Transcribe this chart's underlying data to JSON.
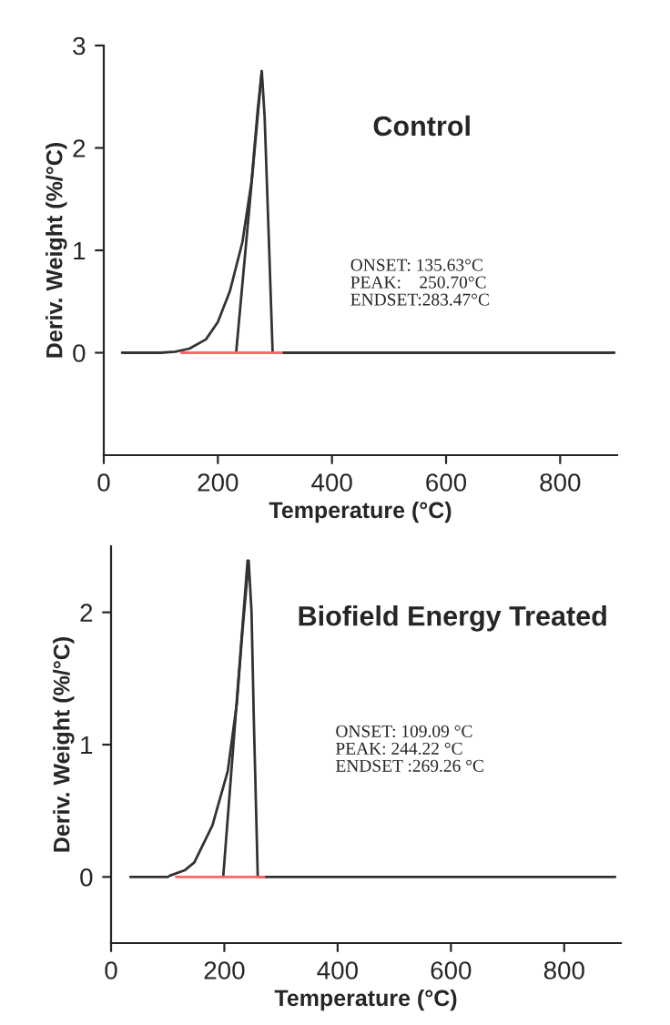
{
  "chart_data": [
    {
      "type": "line",
      "title": "Control",
      "xlabel": "Temperature (°C)",
      "ylabel": "Deriv. Weight (%/°C)",
      "annotations": [
        "ONSET: 135.63°C\nPEAK:    250.70°C\nENDSET:283.47°C"
      ],
      "series": [
        {
          "color": "#333333",
          "x": [
            32,
            100,
            125,
            150,
            179,
            200,
            221,
            243,
            259,
            270,
            277,
            282,
            290,
            296,
            350,
            500,
            700,
            895
          ],
          "values": [
            0,
            0,
            0.01,
            0.04,
            0.13,
            0.3,
            0.6,
            1.08,
            1.67,
            2.38,
            2.75,
            2.3,
            1.0,
            0,
            0,
            0,
            0,
            0
          ]
        },
        {
          "color": "#333333",
          "x": [
            232,
            277
          ],
          "values": [
            0,
            2.75
          ]
        },
        {
          "color": "#ff6666",
          "x": [
            136,
            312
          ],
          "values": [
            0,
            0
          ]
        }
      ],
      "xlim": [
        0,
        900
      ],
      "xticks": [
        0,
        200,
        400,
        600,
        800
      ],
      "ylim": [
        -1,
        3
      ],
      "yticks": [
        0,
        1,
        2,
        3
      ],
      "grid": false,
      "legend": false,
      "marker": "none",
      "line_style": "solid"
    },
    {
      "type": "line",
      "title": "Biofield Energy Treated",
      "xlabel": "Temperature (°C)",
      "ylabel": "Deriv. Weight (%/°C)",
      "annotations": [
        "ONSET: 109.09 °C\nPEAK: 244.22 °C\nENDSET :269.26 °C"
      ],
      "series": [
        {
          "color": "#333333",
          "x": [
            34,
            100,
            104,
            130,
            147,
            179,
            206,
            222,
            232,
            243,
            248,
            252,
            259,
            300,
            500,
            700,
            890
          ],
          "values": [
            0,
            0,
            0.01,
            0.05,
            0.11,
            0.39,
            0.8,
            1.31,
            1.86,
            2.39,
            2.0,
            1.2,
            0,
            0,
            0,
            0,
            0
          ]
        },
        {
          "color": "#333333",
          "x": [
            198,
            241
          ],
          "values": [
            0,
            2.39
          ]
        },
        {
          "color": "#ff6666",
          "x": [
            115,
            270
          ],
          "values": [
            0,
            0
          ]
        }
      ],
      "xlim": [
        0,
        900
      ],
      "xticks": [
        0,
        200,
        400,
        600,
        800
      ],
      "ylim": [
        -0.5,
        2.5
      ],
      "yticks": [
        0,
        1,
        2
      ],
      "grid": false,
      "legend": false,
      "marker": "none",
      "line_style": "solid"
    }
  ]
}
